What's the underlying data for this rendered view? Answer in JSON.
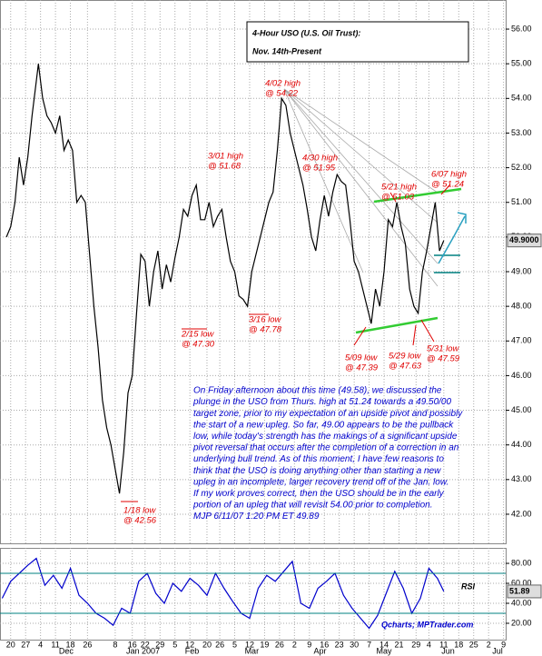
{
  "chart_data": [
    {
      "type": "line",
      "title": [
        "4-Hour USO (U.S. Oil Trust):",
        "Nov. 14th-Present"
      ],
      "x": [
        -13,
        -11,
        -9,
        -7,
        -5,
        -3,
        -1,
        1,
        2,
        4,
        6,
        8,
        10,
        12,
        14,
        16,
        18,
        20,
        22,
        24,
        26,
        28,
        30,
        32,
        34,
        36,
        38,
        40,
        42,
        44,
        46,
        48,
        50,
        52,
        54,
        56,
        58,
        60,
        62,
        64,
        66,
        68,
        70,
        72,
        74,
        76,
        78,
        80,
        82,
        84,
        86,
        88,
        90,
        92,
        94,
        96,
        98,
        100,
        102,
        104,
        106,
        108,
        110,
        112,
        114,
        116,
        118,
        120,
        122,
        124,
        126,
        128,
        130,
        132,
        134,
        136,
        138,
        140,
        142,
        144,
        146,
        148,
        150,
        152,
        154,
        156,
        158,
        160,
        162,
        164,
        166,
        168,
        170,
        172,
        174,
        176,
        178,
        180,
        182,
        184,
        186,
        188,
        190,
        192
      ],
      "series": [
        {
          "color": "#000000",
          "values": [
            50.0,
            50.3,
            51.0,
            52.3,
            51.5,
            52.3,
            53.5,
            54.5,
            55.0,
            54.0,
            53.5,
            53.3,
            53.0,
            53.5,
            52.5,
            52.8,
            52.5,
            51.0,
            51.2,
            51.0,
            49.5,
            48.0,
            46.8,
            45.3,
            44.5,
            44.0,
            43.3,
            42.6,
            43.8,
            45.5,
            46.0,
            47.8,
            49.5,
            49.3,
            48.0,
            49.0,
            49.6,
            48.5,
            49.2,
            48.7,
            49.4,
            50.0,
            50.8,
            50.6,
            51.2,
            51.5,
            50.5,
            50.5,
            51.0,
            50.3,
            50.6,
            50.8,
            50.0,
            49.3,
            49.0,
            48.3,
            48.2,
            48.0,
            49.0,
            49.5,
            50.0,
            50.5,
            51.0,
            51.3,
            52.5,
            54.0,
            53.8,
            53.0,
            52.5,
            52.0,
            51.5,
            50.8,
            50.0,
            49.6,
            50.5,
            51.2,
            50.6,
            51.3,
            51.8,
            51.6,
            51.5,
            50.5,
            49.3,
            49.0,
            48.5,
            48.0,
            47.5,
            48.5,
            48.0,
            49.0,
            50.5,
            50.3,
            51.0,
            50.3,
            49.8,
            48.5,
            48.0,
            47.8,
            49.0,
            49.6,
            50.3,
            51.0,
            49.6,
            49.9
          ]
        }
      ],
      "xlim": [
        -16,
        221
      ],
      "ylim": [
        41.16,
        56.84
      ],
      "yticks": [
        {
          "value": 42,
          "label": "42.00"
        },
        {
          "value": 43,
          "label": "43.00"
        },
        {
          "value": 44,
          "label": "44.00"
        },
        {
          "value": 45,
          "label": "45.00"
        },
        {
          "value": 46,
          "label": "46.00"
        },
        {
          "value": 47,
          "label": "47.00"
        },
        {
          "value": 48,
          "label": "48.00"
        },
        {
          "value": 49,
          "label": "49.00"
        },
        {
          "value": 50,
          "label": "50.00"
        },
        {
          "value": 51,
          "label": "51.00"
        },
        {
          "value": 52,
          "label": "52.00"
        },
        {
          "value": 53,
          "label": "53.00"
        },
        {
          "value": 54,
          "label": "54.00"
        },
        {
          "value": 55,
          "label": "55.00"
        },
        {
          "value": 56,
          "label": "56.00"
        }
      ],
      "last_value": {
        "value": 49.9,
        "label": "49.9000"
      },
      "grid": true,
      "annotations": [
        [
          "1/18 low",
          "@ 42.56"
        ],
        [
          "2/15 low",
          "@ 47.30"
        ],
        [
          "3/01 high",
          "@ 51.68"
        ],
        [
          "3/16 low",
          "@ 47.78"
        ],
        [
          "4/02 high",
          "@ 54.22"
        ],
        [
          "4/30 high",
          "@ 51.95"
        ],
        [
          "5/09 low",
          "@ 47.39"
        ],
        [
          "5/21 high",
          "@ 51.03"
        ],
        [
          "5/29 low",
          "@ 47.63"
        ],
        [
          "5/31 low",
          "@ 47.59"
        ],
        [
          "6/07 high",
          "@ 51.24"
        ]
      ],
      "commentary": [
        "On Friday afternoon about this time (49.58), we discussed the",
        "plunge in the USO from Thurs. high at 51.24 towards a 49.50/00",
        "target zone, prior to my expectation of an upside pivot and possibly",
        "the start of a new upleg. So far, 49.00 appears to be the pullback",
        "low, while today's strength has the makings of a significant upside",
        "pivot reversal that occurs after the completion of a correction in an",
        "underlying bull trend. As of this moment, I have few reasons to",
        "think that the USO is doing anything other than starting a new",
        "upleg in an incomplete, larger recovery trend off of the Jan. low.",
        "If my work proves correct, then the USO should be in the early",
        "portion of an upleg that will revisit 54.00 prior to completion.",
        "MJP  6/11/07  1:20 PM ET  49.89"
      ]
    },
    {
      "type": "line",
      "label": "RSI",
      "source": "Qcharts; MPTrader.com",
      "x": [
        -15,
        -11,
        -7,
        -3,
        1,
        5,
        9,
        13,
        17,
        21,
        25,
        29,
        33,
        37,
        41,
        45,
        49,
        53,
        57,
        61,
        65,
        69,
        73,
        77,
        81,
        85,
        89,
        93,
        97,
        101,
        105,
        109,
        113,
        117,
        121,
        125,
        129,
        133,
        137,
        141,
        145,
        149,
        153,
        157,
        161,
        165,
        169,
        173,
        177,
        181,
        185,
        189,
        192
      ],
      "series": [
        {
          "color": "#0000cc",
          "values": [
            45,
            62,
            70,
            78,
            85,
            58,
            68,
            55,
            75,
            48,
            40,
            30,
            25,
            18,
            35,
            30,
            62,
            70,
            50,
            40,
            60,
            52,
            65,
            58,
            48,
            70,
            55,
            42,
            30,
            25,
            55,
            68,
            62,
            72,
            82,
            40,
            35,
            55,
            62,
            70,
            48,
            35,
            25,
            15,
            28,
            50,
            72,
            55,
            30,
            45,
            75,
            65,
            51.89
          ]
        }
      ],
      "last_value": 51.89,
      "reference_lines": [
        30,
        70
      ],
      "xlim": [
        -16,
        221
      ],
      "ylim": [
        2.7,
        95.5
      ],
      "yticks": [
        {
          "value": 20,
          "label": "20.00"
        },
        {
          "value": 40,
          "label": "40.00"
        },
        {
          "value": 60,
          "label": "60.00"
        },
        {
          "value": 80,
          "label": "80.00"
        }
      ],
      "xticks": [
        {
          "value": -11,
          "label": "20"
        },
        {
          "value": -4,
          "label": "27"
        },
        {
          "value": 3,
          "label": "4"
        },
        {
          "value": 10,
          "label": "11"
        },
        {
          "value": 17,
          "label": "18"
        },
        {
          "value": 25,
          "label": "26"
        },
        {
          "value": 38,
          "label": "8"
        },
        {
          "value": 46,
          "label": "16"
        },
        {
          "value": 52,
          "label": "22"
        },
        {
          "value": 59,
          "label": "29"
        },
        {
          "value": 66,
          "label": "5"
        },
        {
          "value": 73,
          "label": "12"
        },
        {
          "value": 81,
          "label": "20"
        },
        {
          "value": 87,
          "label": "26"
        },
        {
          "value": 94,
          "label": "5"
        },
        {
          "value": 101,
          "label": "12"
        },
        {
          "value": 108,
          "label": "19"
        },
        {
          "value": 115,
          "label": "26"
        },
        {
          "value": 122,
          "label": "2"
        },
        {
          "value": 129,
          "label": "9"
        },
        {
          "value": 136,
          "label": "16"
        },
        {
          "value": 143,
          "label": "23"
        },
        {
          "value": 150,
          "label": "30"
        },
        {
          "value": 157,
          "label": "7"
        },
        {
          "value": 164,
          "label": "14"
        },
        {
          "value": 171,
          "label": "21"
        },
        {
          "value": 179,
          "label": "29"
        },
        {
          "value": 185,
          "label": "4"
        },
        {
          "value": 192,
          "label": "11"
        },
        {
          "value": 199,
          "label": "18"
        },
        {
          "value": 206,
          "label": "25"
        },
        {
          "value": 213,
          "label": "2"
        },
        {
          "value": 220,
          "label": "9"
        }
      ],
      "x_groups": [
        {
          "value": 15,
          "label": "Dec"
        },
        {
          "value": 51,
          "label": "Jan 2007"
        },
        {
          "value": 74,
          "label": "Feb"
        },
        {
          "value": 102,
          "label": "Mar"
        },
        {
          "value": 134,
          "label": "Apr"
        },
        {
          "value": 164,
          "label": "May"
        },
        {
          "value": 194,
          "label": "Jun"
        },
        {
          "value": 225,
          "label": "Jul"
        }
      ],
      "grid": true
    }
  ]
}
